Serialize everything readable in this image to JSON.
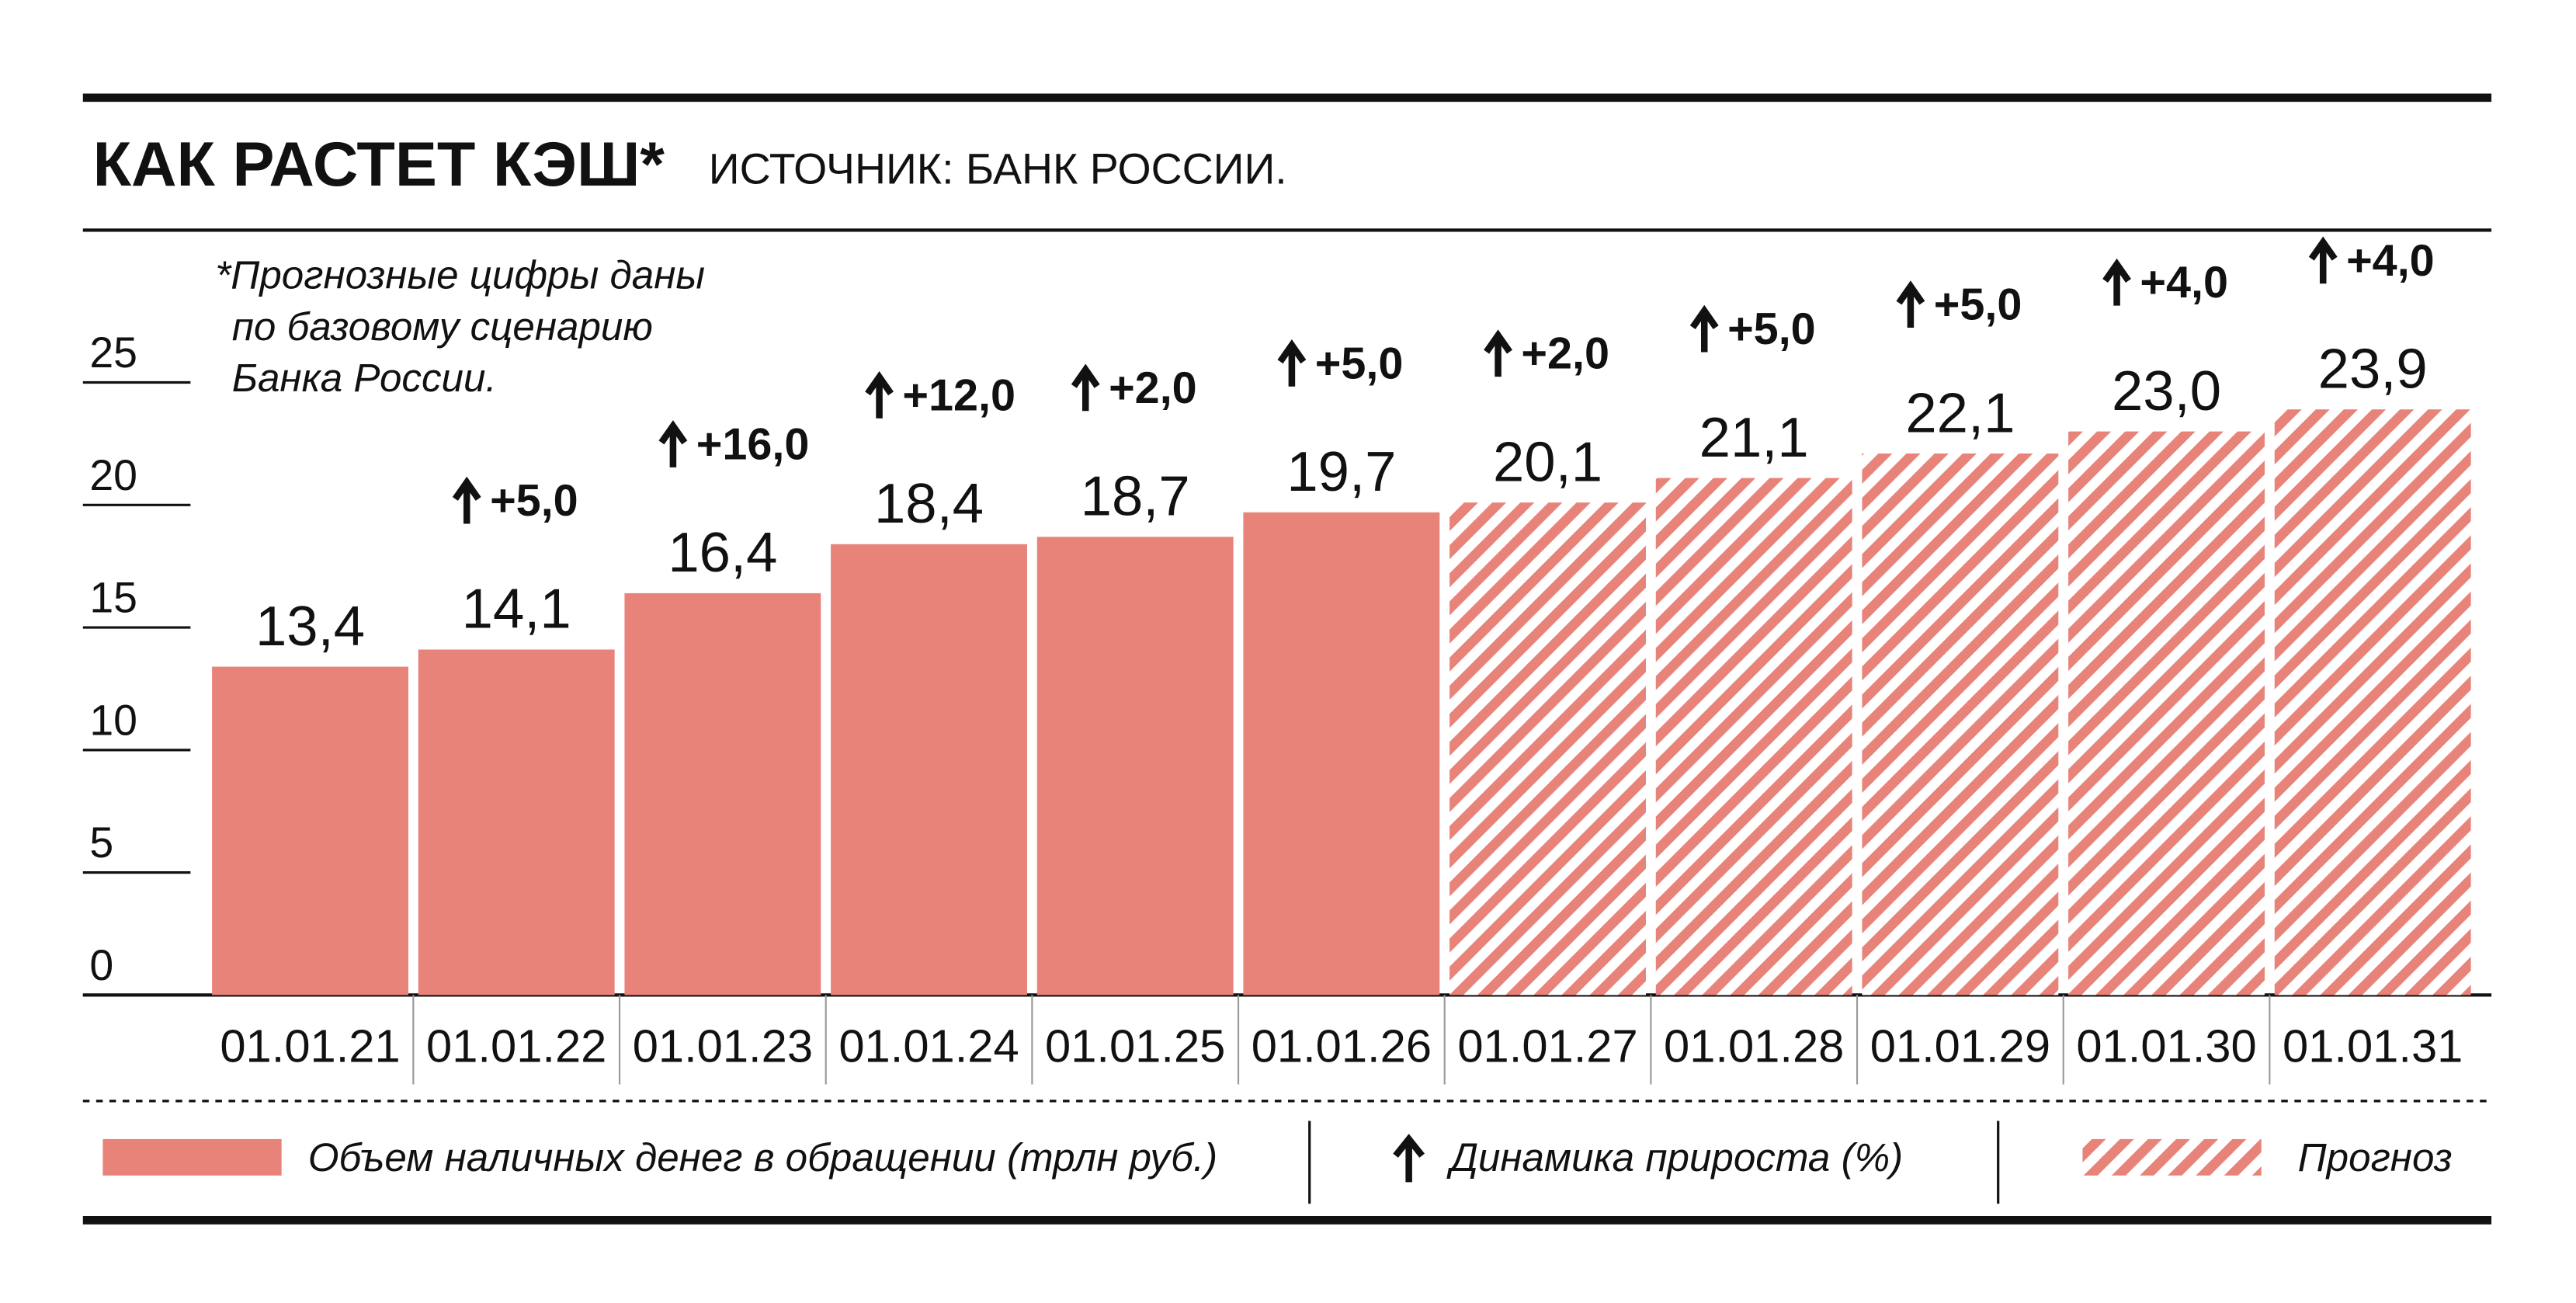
{
  "chart_data": {
    "type": "bar",
    "title": "КАК РАСТЕТ КЭШ*",
    "source": "ИСТОЧНИК: БАНК РОССИИ.",
    "note": [
      "*Прогнозные цифры даны",
      "по базовому сценарию",
      "Банка России."
    ],
    "categories": [
      "01.01.21",
      "01.01.22",
      "01.01.23",
      "01.01.24",
      "01.01.25",
      "01.01.26",
      "01.01.27",
      "01.01.28",
      "01.01.29",
      "01.01.30",
      "01.01.31"
    ],
    "values": [
      13.4,
      14.1,
      16.4,
      18.4,
      18.7,
      19.7,
      20.1,
      21.1,
      22.1,
      23.0,
      23.9
    ],
    "value_labels": [
      "13,4",
      "14,1",
      "16,4",
      "18,4",
      "18,7",
      "19,7",
      "20,1",
      "21,1",
      "22,1",
      "23,0",
      "23,9"
    ],
    "growth": [
      null,
      5,
      16,
      12,
      2,
      5,
      2,
      5,
      5,
      4,
      4
    ],
    "growth_labels": [
      null,
      "+5,0",
      "+16,0",
      "+12,0",
      "+2,0",
      "+5,0",
      "+2,0",
      "+5,0",
      "+5,0",
      "+4,0",
      "+4,0"
    ],
    "forecast": [
      false,
      false,
      false,
      false,
      false,
      false,
      true,
      true,
      true,
      true,
      true
    ],
    "color": "#e8837a",
    "ylim": [
      0,
      25
    ],
    "yticks": [
      0,
      5,
      10,
      15,
      20,
      25
    ],
    "legend": {
      "volume": "Объем наличных денег в обращении (трлн руб.)",
      "growth": "Динамика прироста (%)",
      "forecast": "Прогноз"
    }
  }
}
